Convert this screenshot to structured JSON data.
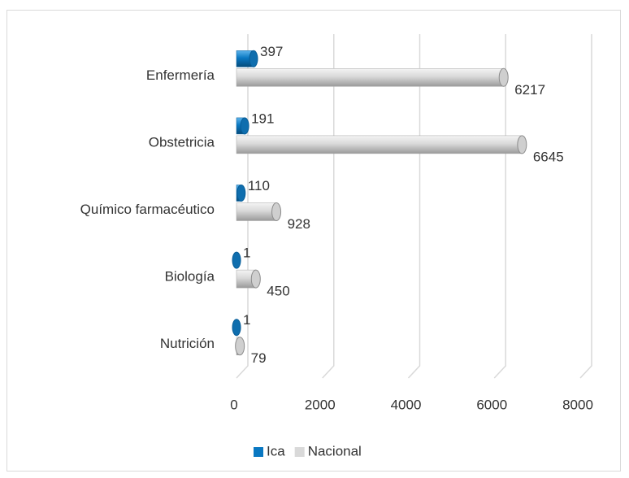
{
  "chart_data": {
    "type": "bar",
    "orientation": "horizontal",
    "categories": [
      "Enfermería",
      "Obstetricia",
      "Químico farmacéutico",
      "Biología",
      "Nutrición"
    ],
    "series": [
      {
        "name": "Ica",
        "color": "#0a78c2",
        "values": [
          397,
          191,
          110,
          1,
          1
        ]
      },
      {
        "name": "Nacional",
        "color": "#d9d9d9",
        "values": [
          6217,
          6645,
          928,
          450,
          79
        ]
      }
    ],
    "xlim": [
      0,
      8000
    ],
    "xticks": [
      0,
      2000,
      4000,
      6000,
      8000
    ],
    "grid": true,
    "legend": "bottom"
  }
}
